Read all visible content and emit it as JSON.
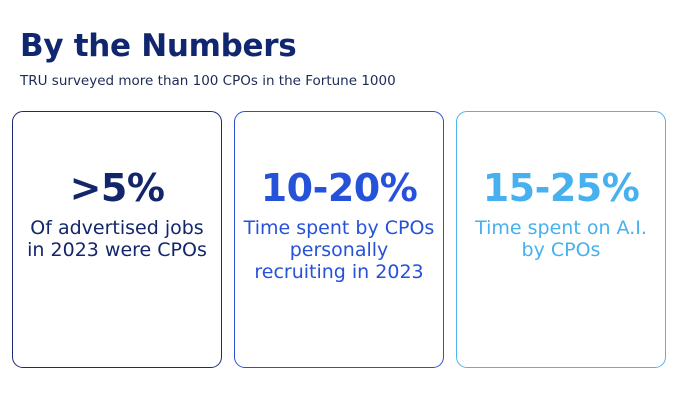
{
  "header": {
    "title": "By the Numbers",
    "subtitle": "TRU surveyed more than 100 CPOs in the Fortune 1000"
  },
  "cards": [
    {
      "stat": ">5%",
      "description": "Of advertised jobs in 2023 were CPOs",
      "color": "#13266b"
    },
    {
      "stat": "10-20%",
      "description": "Time spent by CPOs personally recruiting in 2023",
      "color": "#2651d9"
    },
    {
      "stat": "15-25%",
      "description": "Time spent on A.I. by CPOs",
      "color": "#46b1ee"
    }
  ]
}
